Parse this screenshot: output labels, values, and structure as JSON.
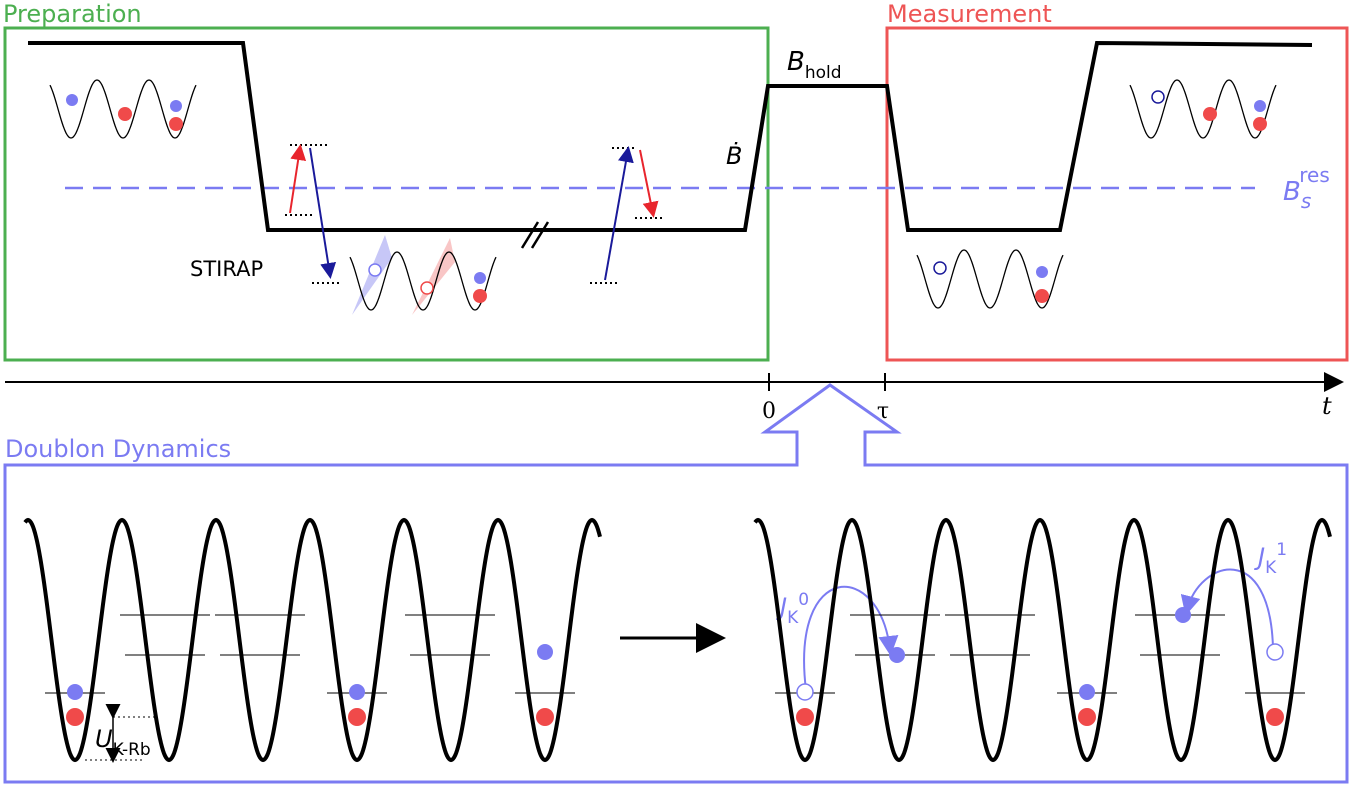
{
  "panels": {
    "preparation": "Preparation",
    "measurement": "Measurement",
    "doublon_dynamics": "Doublon Dynamics"
  },
  "labels": {
    "stirap": "STIRAP",
    "b_dot": "Ḃ",
    "b_hold": {
      "main": "B",
      "sub": "hold"
    },
    "b_res": {
      "main": "B",
      "sub": "s",
      "sup": "res"
    },
    "u": {
      "main": "U",
      "sub": "K-Rb"
    },
    "j0": {
      "main": "J",
      "sub": "K",
      "sup": "0"
    },
    "j1": {
      "main": "J",
      "sub": "K",
      "sup": "1"
    }
  },
  "axis": {
    "zero": "0",
    "tau": "τ",
    "t": "t"
  }
}
